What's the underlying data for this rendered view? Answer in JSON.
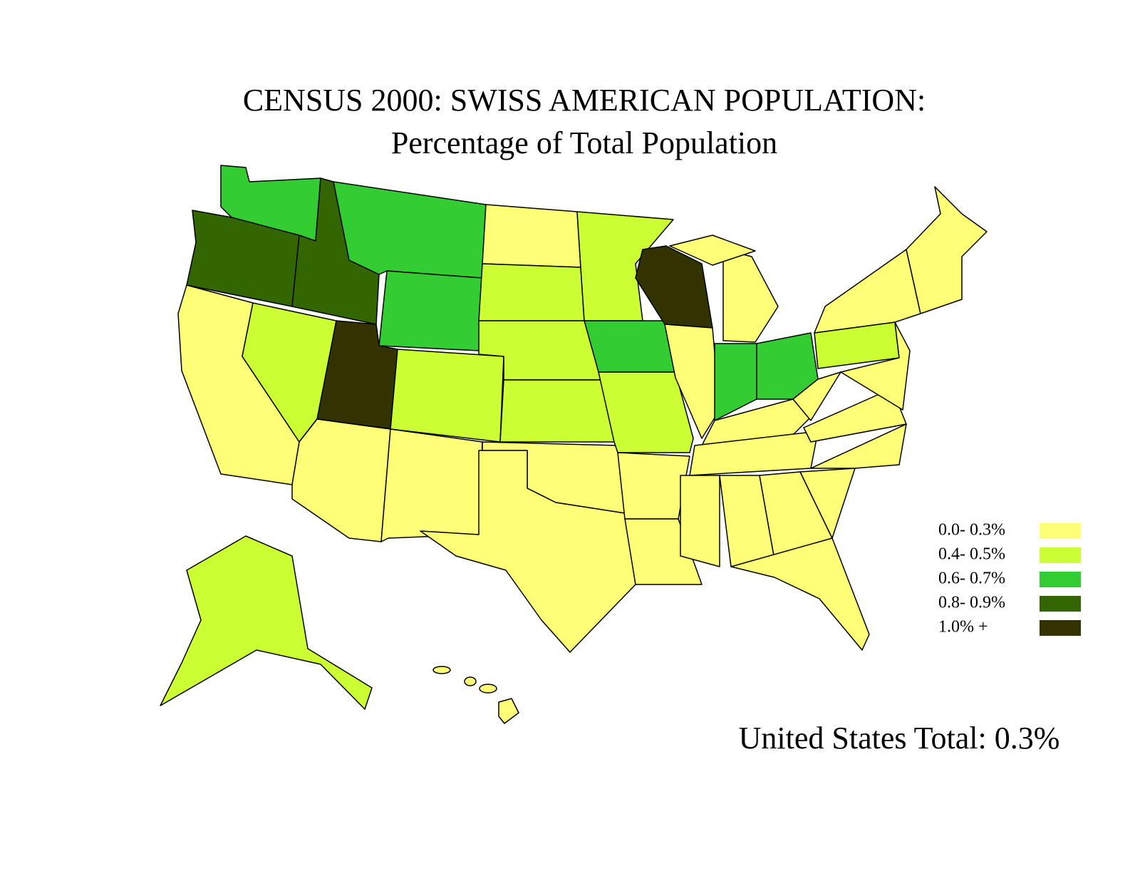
{
  "title": "CENSUS 2000: SWISS AMERICAN POPULATION:",
  "subtitle": "Percentage of Total Population",
  "legend": [
    {
      "label": "0.0- 0.3%",
      "color": "#ffff77"
    },
    {
      "label": "0.4- 0.5%",
      "color": "#ccff33"
    },
    {
      "label": "0.6- 0.7%",
      "color": "#33cc33"
    },
    {
      "label": "0.8- 0.9%",
      "color": "#336600"
    },
    {
      "label": "1.0% +",
      "color": "#333300"
    }
  ],
  "note": "United States Total: 0.3%"
}
